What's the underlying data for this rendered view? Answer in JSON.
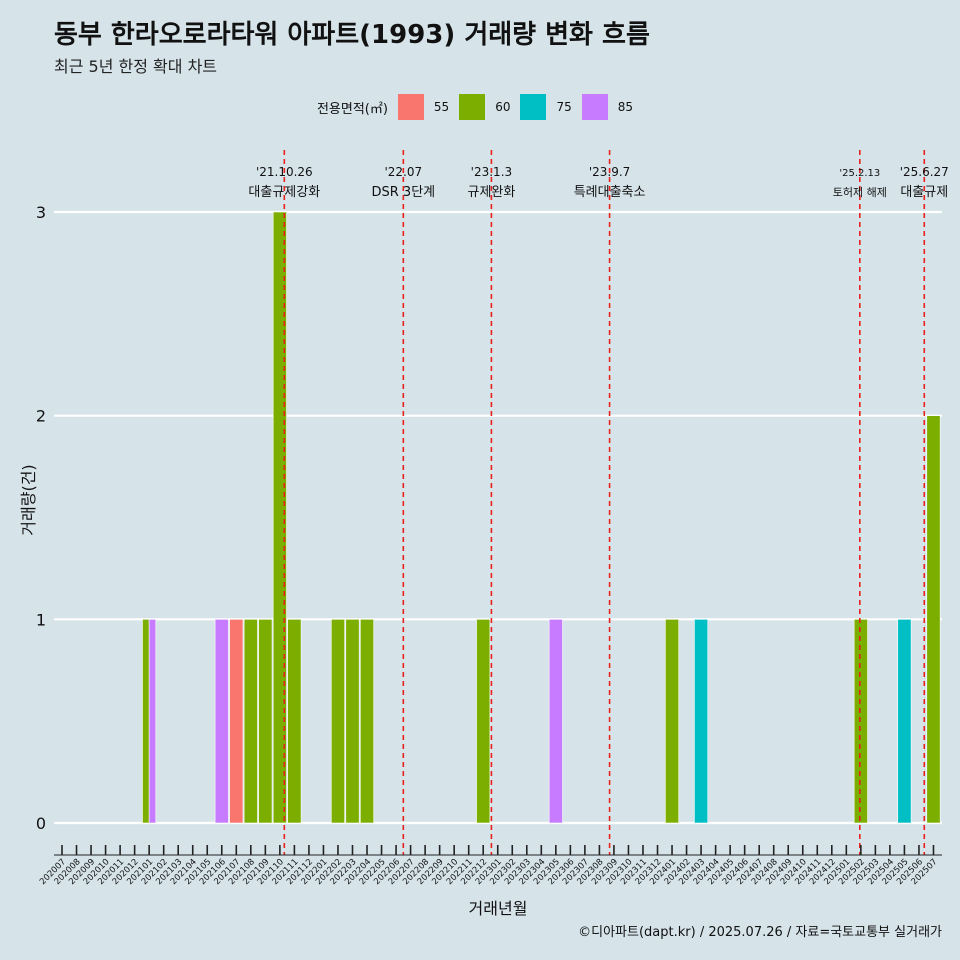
{
  "title": "동부 한라오로라타워 아파트(1993) 거래량 변화 흐름",
  "subtitle": "최근 5년 한정 확대 차트",
  "caption": "©디아파트(dapt.kr) / 2025.07.26 / 자료=국토교통부 실거래가",
  "legend": {
    "title": "전용면적(㎡)",
    "items": [
      {
        "label": "55",
        "color": "#F8766D"
      },
      {
        "label": "60",
        "color": "#7CAE00"
      },
      {
        "label": "75",
        "color": "#00BFC4"
      },
      {
        "label": "85",
        "color": "#C77CFF"
      }
    ]
  },
  "chart_data": {
    "type": "bar",
    "xlabel": "거래년월",
    "ylabel": "거래량(건)",
    "ylim": [
      0,
      3
    ],
    "yticks": [
      0,
      1,
      2,
      3
    ],
    "grid": true,
    "categories": [
      "202007",
      "202008",
      "202009",
      "202010",
      "202011",
      "202012",
      "202101",
      "202102",
      "202103",
      "202104",
      "202105",
      "202106",
      "202107",
      "202108",
      "202109",
      "202110",
      "202111",
      "202112",
      "202201",
      "202202",
      "202203",
      "202204",
      "202205",
      "202206",
      "202207",
      "202208",
      "202209",
      "202210",
      "202211",
      "202212",
      "202301",
      "202302",
      "202303",
      "202304",
      "202305",
      "202306",
      "202307",
      "202308",
      "202309",
      "202310",
      "202311",
      "202312",
      "202401",
      "202402",
      "202403",
      "202404",
      "202405",
      "202406",
      "202407",
      "202408",
      "202409",
      "202410",
      "202411",
      "202412",
      "202501",
      "202502",
      "202503",
      "202504",
      "202505",
      "202506",
      "202507"
    ],
    "bars": [
      {
        "month": "202101",
        "segments": [
          {
            "area": "60",
            "value": 1
          },
          {
            "area": "85",
            "value": 1
          }
        ]
      },
      {
        "month": "202106",
        "segments": [
          {
            "area": "85",
            "value": 1
          }
        ]
      },
      {
        "month": "202107",
        "segments": [
          {
            "area": "55",
            "value": 1
          }
        ]
      },
      {
        "month": "202108",
        "segments": [
          {
            "area": "60",
            "value": 1
          }
        ]
      },
      {
        "month": "202109",
        "segments": [
          {
            "area": "60",
            "value": 1
          }
        ]
      },
      {
        "month": "202110",
        "segments": [
          {
            "area": "60",
            "value": 3
          }
        ]
      },
      {
        "month": "202111",
        "segments": [
          {
            "area": "60",
            "value": 1
          }
        ]
      },
      {
        "month": "202202",
        "segments": [
          {
            "area": "60",
            "value": 1
          }
        ]
      },
      {
        "month": "202203",
        "segments": [
          {
            "area": "60",
            "value": 1
          }
        ]
      },
      {
        "month": "202204",
        "segments": [
          {
            "area": "60",
            "value": 1
          }
        ]
      },
      {
        "month": "202212",
        "segments": [
          {
            "area": "60",
            "value": 1
          }
        ]
      },
      {
        "month": "202305",
        "segments": [
          {
            "area": "85",
            "value": 1
          }
        ]
      },
      {
        "month": "202401",
        "segments": [
          {
            "area": "60",
            "value": 1
          }
        ]
      },
      {
        "month": "202403",
        "segments": [
          {
            "area": "75",
            "value": 1
          }
        ]
      },
      {
        "month": "202502",
        "segments": [
          {
            "area": "60",
            "value": 1
          }
        ]
      },
      {
        "month": "202505",
        "segments": [
          {
            "area": "75",
            "value": 1
          }
        ]
      },
      {
        "month": "202507",
        "segments": [
          {
            "area": "60",
            "value": 2
          }
        ]
      }
    ],
    "events": [
      {
        "x": "2021-10-26",
        "date": "'21.10.26",
        "text": "대출규제강화",
        "size": "normal"
      },
      {
        "x": "2022-07-01",
        "date": "'22.07",
        "text": "DSR 3단계",
        "size": "normal"
      },
      {
        "x": "2023-01-03",
        "date": "'23.1.3",
        "text": "규제완화",
        "size": "normal"
      },
      {
        "x": "2023-09-07",
        "date": "'23.9.7",
        "text": "특례대출축소",
        "size": "normal"
      },
      {
        "x": "2025-02-13",
        "date": "'25.2.13",
        "text": "토허제 해제",
        "size": "small"
      },
      {
        "x": "2025-06-27",
        "date": "'25.6.27",
        "text": "대출규제",
        "size": "normal"
      }
    ]
  }
}
